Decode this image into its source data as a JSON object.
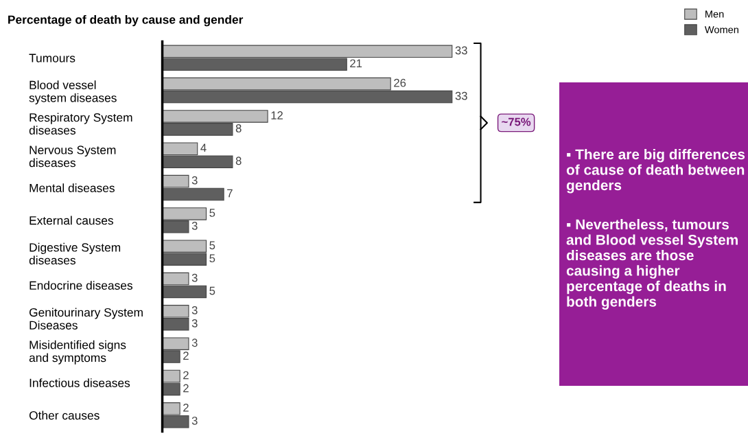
{
  "chart_data": {
    "type": "bar",
    "orientation": "horizontal",
    "title": "Percentage of death by cause and gender",
    "categories": [
      "Tumours",
      "Blood vessel\nsystem diseases",
      "Respiratory System\ndiseases",
      "Nervous System\ndiseases",
      "Mental diseases",
      "External causes",
      "Digestive System\ndiseases",
      "Endocrine diseases",
      "Genitourinary System\nDiseases",
      "Misidentified signs\nand symptoms",
      "Infectious diseases",
      "Other causes"
    ],
    "series": [
      {
        "name": "Men",
        "color": "#bdbdbd",
        "values": [
          33,
          26,
          12,
          4,
          3,
          5,
          5,
          3,
          3,
          3,
          2,
          2
        ]
      },
      {
        "name": "Women",
        "color": "#5f5f5f",
        "values": [
          21,
          33,
          8,
          8,
          7,
          3,
          5,
          5,
          3,
          2,
          2,
          3
        ]
      }
    ],
    "data_labels": true,
    "legend": "top right",
    "grid": false,
    "tick_labels": "y",
    "annotations": [
      "~75%",
      "▪ There are big differences of cause of death between genders",
      "▪ Nevertheless, tumours and Blood vessel System diseases are those causing a higher percentage of deaths in both genders"
    ]
  }
}
